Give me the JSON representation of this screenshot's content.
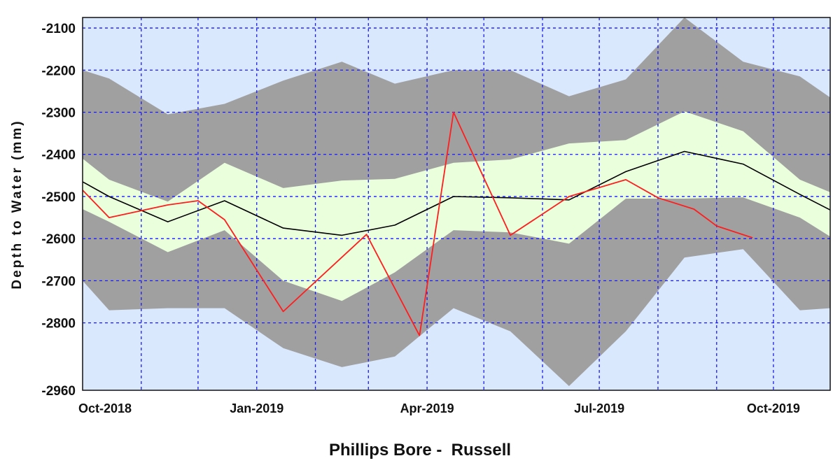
{
  "chart_data": {
    "type": "area",
    "title": "Phillips Bore -  Russell",
    "xlabel": "",
    "ylabel": "Depth to Water (mm)",
    "x_tick_labels": [
      "Oct-2018",
      "Jan-2019",
      "Apr-2019",
      "Jul-2019",
      "Oct-2019"
    ],
    "x_tick_dates": [
      "2018-10-01",
      "2019-01-01",
      "2019-04-01",
      "2019-07-01",
      "2019-10-01"
    ],
    "x_range": [
      "2018-10-01",
      "2019-10-31"
    ],
    "y_tick_labels": [
      "-2100",
      "-2200",
      "-2300",
      "-2400",
      "-2500",
      "-2600",
      "-2700",
      "-2800",
      "-2960"
    ],
    "ylim": [
      -2960,
      -2075
    ],
    "grid": true,
    "colors": {
      "plot_background": "#d9e8fd",
      "outer_band": "#a0a0a0",
      "inner_band": "#eaffdc",
      "mean_line": "#000000",
      "observed_line": "#ff1e1e",
      "grid": "#1a1aff"
    },
    "bands": [
      {
        "color_role": "outer_band",
        "x": [
          "2018-10-01",
          "2018-10-15",
          "2018-11-15",
          "2018-12-15",
          "2019-01-15",
          "2019-02-15",
          "2019-03-15",
          "2019-04-15",
          "2019-05-15",
          "2019-06-15",
          "2019-07-15",
          "2019-08-15",
          "2019-09-15",
          "2019-10-15",
          "2019-10-31"
        ],
        "upper": [
          -2200,
          -2220,
          -2305,
          -2280,
          -2225,
          -2180,
          -2232,
          -2200,
          -2200,
          -2262,
          -2222,
          -2075,
          -2180,
          -2215,
          -2265
        ],
        "lower": [
          -2700,
          -2770,
          -2765,
          -2765,
          -2860,
          -2905,
          -2880,
          -2765,
          -2820,
          -2950,
          -2820,
          -2645,
          -2625,
          -2770,
          -2765
        ]
      },
      {
        "color_role": "inner_band",
        "x": [
          "2018-10-01",
          "2018-10-15",
          "2018-11-15",
          "2018-12-15",
          "2019-01-15",
          "2019-02-15",
          "2019-03-15",
          "2019-04-15",
          "2019-05-15",
          "2019-06-15",
          "2019-07-15",
          "2019-08-15",
          "2019-09-15",
          "2019-10-15",
          "2019-10-31"
        ],
        "upper": [
          -2410,
          -2460,
          -2512,
          -2420,
          -2480,
          -2462,
          -2458,
          -2420,
          -2412,
          -2374,
          -2366,
          -2298,
          -2345,
          -2460,
          -2490
        ],
        "lower": [
          -2530,
          -2560,
          -2632,
          -2580,
          -2700,
          -2748,
          -2680,
          -2580,
          -2585,
          -2612,
          -2505,
          -2505,
          -2502,
          -2550,
          -2595
        ]
      }
    ],
    "series": [
      {
        "color_role": "mean_line",
        "x": [
          "2018-10-01",
          "2018-10-15",
          "2018-11-15",
          "2018-12-15",
          "2019-01-15",
          "2019-02-15",
          "2019-03-15",
          "2019-04-15",
          "2019-05-15",
          "2019-06-15",
          "2019-07-15",
          "2019-08-15",
          "2019-09-15",
          "2019-10-15",
          "2019-10-31"
        ],
        "values": [
          -2465,
          -2500,
          -2560,
          -2510,
          -2575,
          -2592,
          -2568,
          -2500,
          -2503,
          -2508,
          -2441,
          -2393,
          -2423,
          -2495,
          -2532
        ]
      },
      {
        "color_role": "observed_line",
        "x": [
          "2018-10-01",
          "2018-10-15",
          "2018-11-15",
          "2018-12-01",
          "2018-12-15",
          "2019-01-15",
          "2019-02-28",
          "2019-03-28",
          "2019-04-15",
          "2019-05-15",
          "2019-06-15",
          "2019-07-15",
          "2019-08-01",
          "2019-08-20",
          "2019-09-01",
          "2019-09-20"
        ],
        "values": [
          -2485,
          -2550,
          -2520,
          -2510,
          -2555,
          -2773,
          -2590,
          -2830,
          -2300,
          -2592,
          -2500,
          -2460,
          -2503,
          -2530,
          -2570,
          -2598
        ]
      }
    ]
  }
}
